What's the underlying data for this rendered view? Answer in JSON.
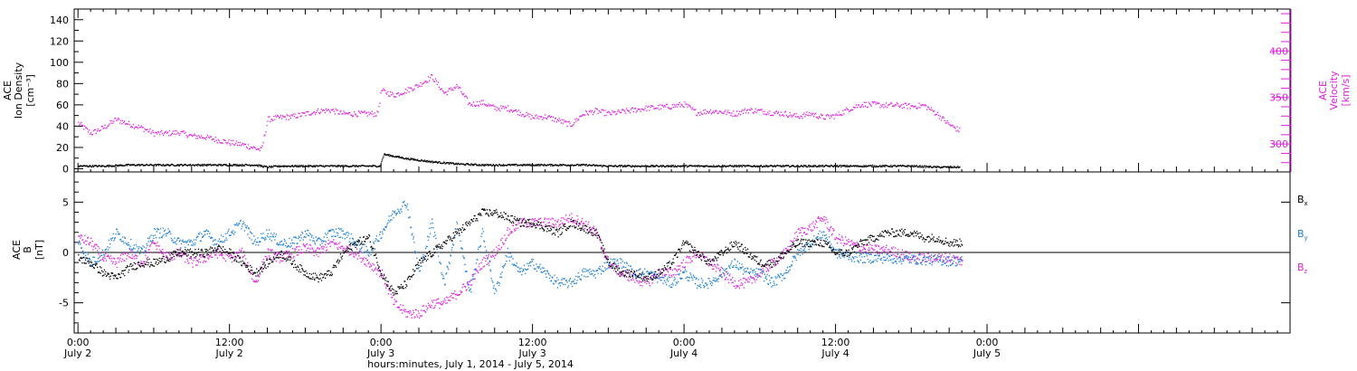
{
  "chart_data": [
    {
      "type": "scatter",
      "panel": "ace-density-velocity",
      "ylabel_lines": [
        "ACE",
        "Ion Density",
        "[cm⁻³]"
      ],
      "yticks": [
        "0",
        "20",
        "40",
        "60",
        "80",
        "100",
        "120",
        "140"
      ],
      "ylim": [
        -3,
        150
      ],
      "y2label_lines": [
        "ACE",
        "Velocity",
        "[km/s]"
      ],
      "y2ticks": [
        "300",
        "350",
        "400"
      ],
      "y2lim": [
        270,
        445
      ],
      "x_unit": "hours since July 2 00:00",
      "xlim": [
        -0.3,
        96
      ],
      "series": [
        {
          "axis": "y2",
          "color": "#e020e0",
          "x": [
            0,
            1,
            2,
            3,
            4,
            5,
            6,
            7,
            8,
            9,
            10,
            11,
            12,
            13,
            14,
            14.5,
            15,
            16,
            17,
            18,
            19,
            20,
            21,
            22,
            23,
            23.7,
            24,
            25,
            26,
            27,
            28,
            29,
            30,
            31,
            32,
            33,
            34,
            35,
            36,
            37,
            38,
            39,
            40,
            41,
            42,
            43,
            44,
            45,
            46,
            47,
            48,
            49,
            50,
            51,
            52,
            53,
            54,
            55,
            56,
            57,
            58,
            59,
            60,
            61,
            62,
            63,
            64,
            65,
            66,
            67,
            68,
            69,
            69.8
          ],
          "y": [
            323,
            312,
            318,
            327,
            322,
            318,
            312,
            312,
            313,
            309,
            308,
            305,
            302,
            300,
            296,
            294,
            327,
            329,
            330,
            333,
            336,
            337,
            333,
            333,
            333,
            333,
            358,
            353,
            358,
            364,
            373,
            355,
            363,
            343,
            345,
            339,
            339,
            334,
            329,
            330,
            326,
            321,
            333,
            336,
            333,
            335,
            337,
            339,
            340,
            341,
            343,
            334,
            336,
            335,
            333,
            337,
            336,
            334,
            333,
            330,
            333,
            329,
            331,
            338,
            343,
            343,
            342,
            342,
            341,
            342,
            333,
            321,
            315
          ]
        },
        {
          "axis": "y",
          "color": "#000000",
          "x": [
            0,
            2,
            4,
            6,
            8,
            10,
            12,
            14,
            15,
            16,
            18,
            20,
            22,
            23.9,
            24.2,
            26,
            28,
            30,
            32,
            34,
            36,
            38,
            40,
            42,
            44,
            46,
            48,
            50,
            52,
            54,
            56,
            58,
            60,
            62,
            64,
            66,
            68,
            69.8
          ],
          "y": [
            3,
            3,
            4,
            4,
            4,
            4,
            4,
            4,
            2,
            3,
            3,
            3,
            3,
            3,
            14,
            10,
            7,
            5,
            4,
            4,
            4,
            4,
            4,
            3,
            3,
            3,
            3,
            3,
            3,
            3,
            3,
            3,
            3,
            3,
            3,
            3,
            2,
            2
          ]
        }
      ]
    },
    {
      "type": "scatter",
      "panel": "ace-magnetic-field",
      "ylabel_lines": [
        "ACE",
        "B",
        "[nT]"
      ],
      "yticks": [
        "-5",
        "0",
        "5"
      ],
      "ylim": [
        -8,
        8
      ],
      "x_unit": "hours since July 2 00:00",
      "xlim": [
        -0.3,
        96
      ],
      "series": [
        {
          "name": "Bx",
          "label_main": "B",
          "label_sub": "x",
          "color": "#000000",
          "x": [
            0,
            1,
            2,
            3,
            4,
            5,
            6,
            7,
            8,
            9,
            10,
            11,
            12,
            13,
            14,
            15,
            16,
            17,
            18,
            19,
            20,
            21,
            22,
            23,
            24,
            25,
            26,
            27,
            28,
            29,
            30,
            31,
            32,
            33,
            34,
            35,
            36,
            37,
            38,
            39,
            40,
            41,
            42,
            43,
            44,
            45,
            46,
            47,
            48,
            49,
            50,
            51,
            52,
            53,
            54,
            55,
            56,
            57,
            58,
            59,
            60,
            61,
            62,
            63,
            64,
            65,
            66,
            67,
            68,
            69,
            70
          ],
          "y": [
            -0.5,
            -1,
            -2,
            -2.5,
            -1.5,
            -1,
            -1,
            -0.5,
            0,
            0,
            0,
            0.5,
            0,
            -1,
            -2,
            -1,
            0,
            -1,
            -2,
            -2.5,
            -2,
            0,
            1,
            1.5,
            -2,
            -4,
            -3,
            -1,
            0,
            1,
            2,
            3,
            4,
            4,
            3.5,
            3,
            3,
            2.5,
            2,
            3,
            2.5,
            2,
            -1,
            -2,
            -2,
            -2.5,
            -2,
            -1,
            1,
            0,
            -1,
            0,
            1,
            0,
            -1,
            -1,
            0,
            1,
            1,
            1,
            0,
            0,
            1,
            1.5,
            2,
            2,
            2,
            1.5,
            1.5,
            1,
            1
          ]
        },
        {
          "name": "By",
          "label_main": "B",
          "label_sub": "y",
          "color": "#1a7fd6",
          "x": [
            0,
            1,
            2,
            3,
            4,
            5,
            6,
            7,
            8,
            9,
            10,
            11,
            12,
            13,
            14,
            15,
            16,
            17,
            18,
            19,
            20,
            21,
            22,
            23,
            24,
            25,
            26,
            27,
            28,
            29,
            30,
            31,
            32,
            33,
            34,
            35,
            36,
            37,
            38,
            39,
            40,
            41,
            42,
            43,
            44,
            45,
            46,
            47,
            48,
            49,
            50,
            51,
            52,
            53,
            54,
            55,
            56,
            57,
            58,
            59,
            60,
            61,
            62,
            63,
            64,
            65,
            66,
            67,
            68,
            69,
            70
          ],
          "y": [
            1,
            -1,
            0,
            2,
            1,
            0,
            2,
            2,
            1,
            1,
            2,
            1,
            2,
            3,
            1,
            2,
            1,
            1,
            2,
            1,
            2,
            2,
            1,
            0,
            2,
            4,
            5,
            -2,
            3,
            -3,
            3,
            -4,
            2,
            -4,
            0,
            -2,
            -1,
            -2,
            -3,
            -3,
            -2,
            -2,
            -1,
            -1,
            -2,
            -2,
            -2.5,
            -3,
            -2,
            -3,
            -3,
            -2,
            -1,
            -2,
            -2,
            -3,
            -2,
            0,
            1,
            2,
            0,
            -0.3,
            -0.5,
            -0.5,
            -0.5,
            -0.6,
            -0.6,
            -0.7,
            -0.7,
            -0.8,
            -0.8
          ]
        },
        {
          "name": "Bz",
          "label_main": "B",
          "label_sub": "z",
          "color": "#e020e0",
          "x": [
            0,
            1,
            2,
            3,
            4,
            5,
            6,
            7,
            8,
            9,
            10,
            11,
            12,
            13,
            14,
            15,
            16,
            17,
            18,
            19,
            20,
            21,
            22,
            23,
            24,
            25,
            26,
            27,
            28,
            29,
            30,
            31,
            32,
            33,
            34,
            35,
            36,
            37,
            38,
            39,
            40,
            41,
            42,
            43,
            44,
            45,
            46,
            47,
            48,
            49,
            50,
            51,
            52,
            53,
            54,
            55,
            56,
            57,
            58,
            59,
            60,
            61,
            62,
            63,
            64,
            65,
            66,
            67,
            68,
            69,
            70
          ],
          "y": [
            1.5,
            1,
            -0.5,
            -1,
            0,
            -1,
            1,
            -0.5,
            0,
            -1,
            -0.5,
            0,
            -0.5,
            0,
            -3,
            0,
            -0.5,
            0,
            0.5,
            0,
            1,
            0.5,
            0,
            -1,
            -2,
            -5,
            -6,
            -6,
            -5,
            -5,
            -4,
            -3,
            -1,
            0,
            2,
            3,
            3,
            3,
            3,
            3.5,
            3,
            2,
            -1,
            -2,
            -2.5,
            -3,
            -2,
            -2,
            -1,
            0,
            -1,
            -2,
            -3,
            -3,
            -2,
            -1,
            0,
            2,
            2.5,
            3.5,
            1.5,
            1,
            0.5,
            0.3,
            0.3,
            0,
            -0.5,
            -0.5,
            -0.5,
            -0.5,
            -0.8
          ]
        }
      ]
    }
  ],
  "xaxis": {
    "ticks": [
      {
        "hour": 0,
        "time": "0:00",
        "date": "July 2"
      },
      {
        "hour": 12,
        "time": "12:00",
        "date": "July 2"
      },
      {
        "hour": 24,
        "time": "0:00",
        "date": "July 3"
      },
      {
        "hour": 36,
        "time": "12:00",
        "date": "July 3"
      },
      {
        "hour": 48,
        "time": "0:00",
        "date": "July 4"
      },
      {
        "hour": 60,
        "time": "12:00",
        "date": "July 4"
      },
      {
        "hour": 72,
        "time": "0:00",
        "date": "July 5"
      }
    ],
    "title": "hours:minutes, July  1, 2014 - July  5, 2014"
  },
  "colors": {
    "magenta": "#e020e0",
    "blue": "#1a7fd6",
    "black": "#000000"
  }
}
